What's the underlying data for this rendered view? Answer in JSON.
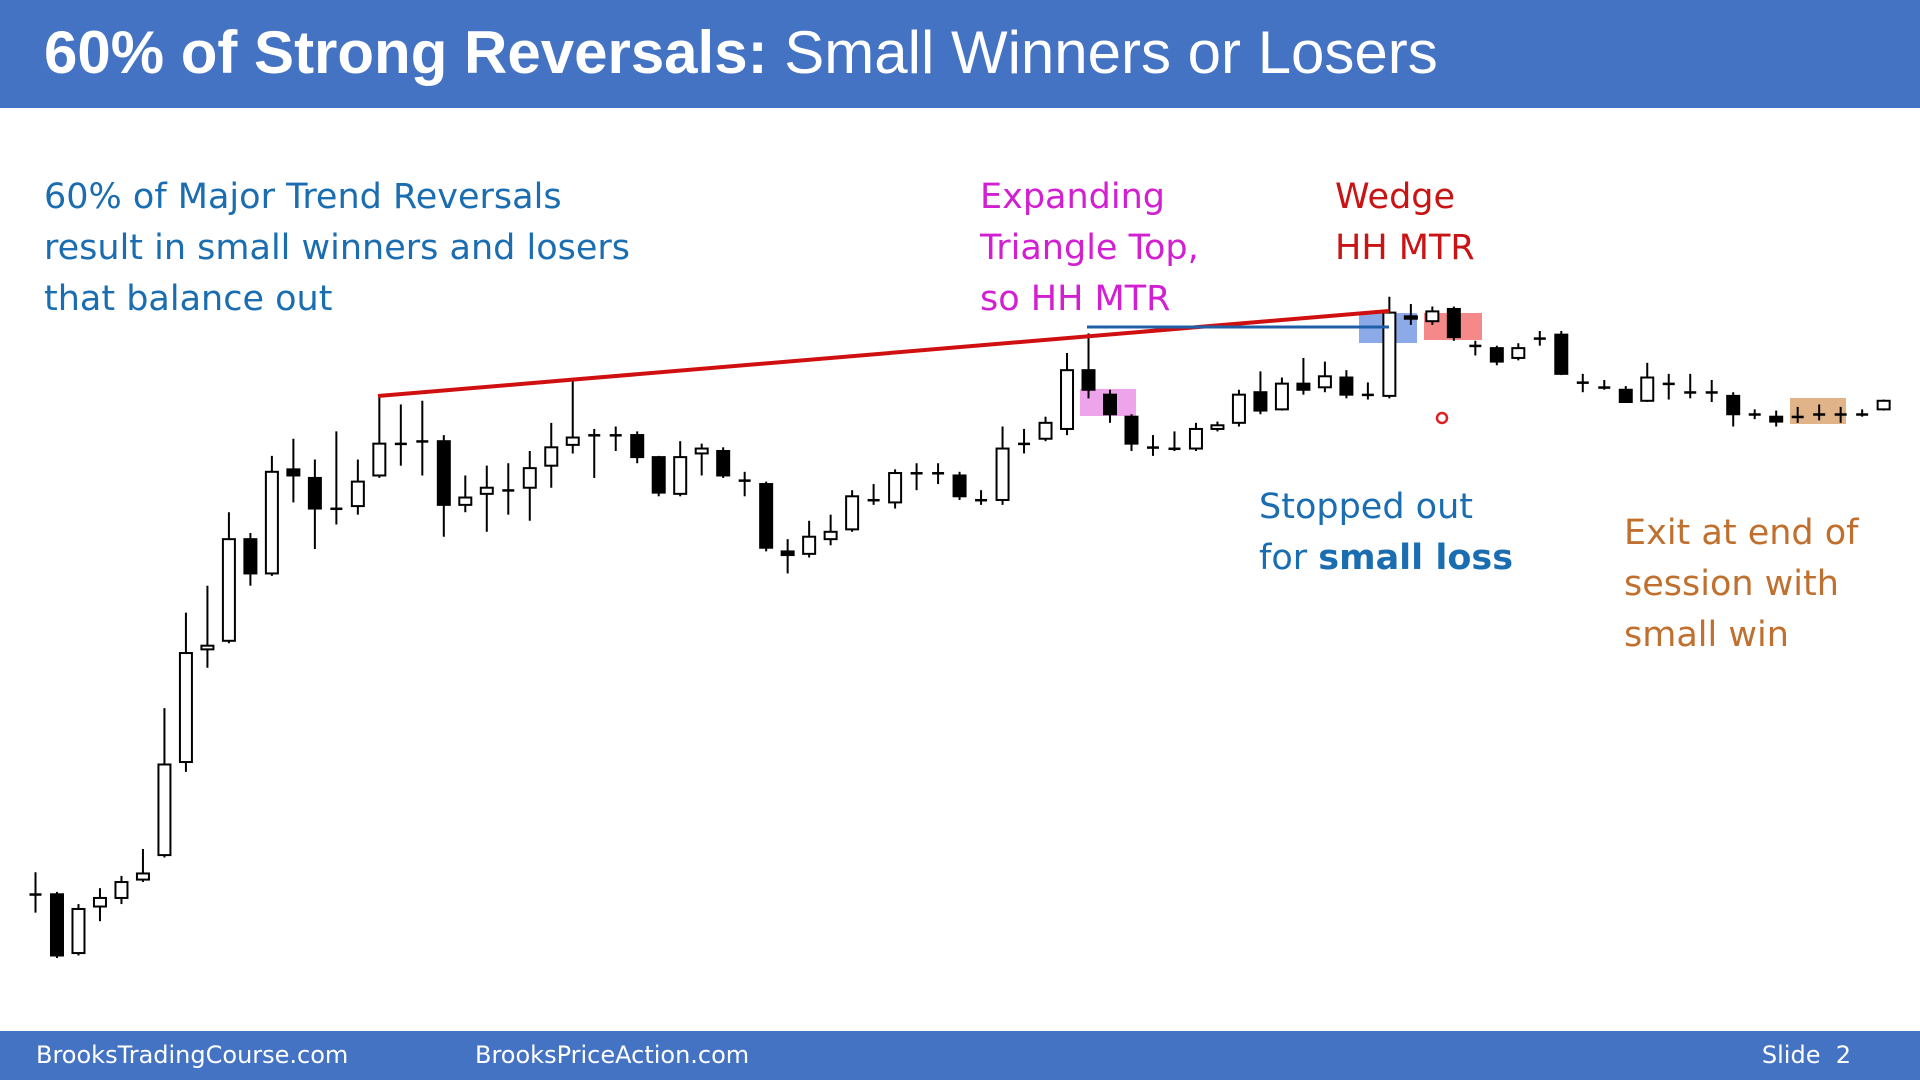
{
  "header": {
    "title_bold": "60% of Strong Reversals:",
    "title_rest": "Small Winners or Losers"
  },
  "notes": {
    "intro": [
      "60% of Major Trend Reversals",
      "result in small winners and losers",
      "that balance out"
    ],
    "expanding": [
      "Expanding",
      "Triangle Top,",
      "so HH MTR"
    ],
    "wedge": [
      "Wedge",
      "HH MTR"
    ],
    "stopped": {
      "line1": "Stopped out",
      "line2_plain": "for",
      "line2_bold": "small loss"
    },
    "exit": [
      "Exit at end of",
      "session with",
      "small win"
    ]
  },
  "footer": {
    "left": "BrooksTradingCourse.com",
    "middle": "BrooksPriceAction.com",
    "right": "Slide  2"
  },
  "chart_data": {
    "type": "candlestick",
    "up_color": "#ffffff",
    "down_color": "#000000",
    "ylim": [
      0,
      570
    ],
    "open": [
      70,
      70,
      22,
      60,
      67,
      82,
      102,
      178,
      270,
      277,
      360,
      332,
      417,
      410,
      385,
      387,
      412,
      438,
      440,
      440,
      388,
      397,
      400,
      402,
      420,
      437,
      445,
      445,
      445,
      427,
      397,
      430,
      432,
      408,
      405,
      350,
      348,
      360,
      368,
      392,
      390,
      414,
      414,
      412,
      392,
      392,
      438,
      442,
      450,
      498,
      478,
      460,
      435,
      434,
      434,
      450,
      455,
      480,
      466,
      487,
      484,
      492,
      478,
      477,
      542,
      538,
      548,
      518,
      516,
      508,
      524,
      527,
      488,
      484,
      482,
      473,
      487,
      480,
      480,
      477,
      462,
      460,
      460,
      462,
      462,
      462,
      466
    ],
    "high": [
      88,
      72,
      62,
      75,
      85,
      107,
      222,
      300,
      322,
      382,
      365,
      428,
      442,
      425,
      448,
      425,
      478,
      470,
      473,
      445,
      412,
      420,
      422,
      432,
      455,
      490,
      450,
      452,
      448,
      428,
      440,
      438,
      435,
      415,
      407,
      360,
      375,
      380,
      400,
      405,
      417,
      422,
      422,
      415,
      400,
      452,
      450,
      460,
      512,
      528,
      482,
      462,
      445,
      448,
      455,
      456,
      482,
      497,
      492,
      508,
      505,
      498,
      488,
      558,
      552,
      550,
      550,
      522,
      518,
      520,
      530,
      530,
      495,
      490,
      485,
      504,
      495,
      495,
      490,
      480,
      466,
      465,
      468,
      470,
      468,
      466,
      474
    ],
    "low": [
      55,
      18,
      20,
      48,
      62,
      80,
      100,
      170,
      255,
      275,
      322,
      330,
      390,
      352,
      372,
      380,
      410,
      420,
      412,
      362,
      382,
      366,
      380,
      375,
      402,
      430,
      410,
      432,
      422,
      395,
      395,
      412,
      410,
      395,
      350,
      332,
      345,
      355,
      366,
      388,
      385,
      400,
      405,
      392,
      388,
      388,
      430,
      440,
      445,
      475,
      455,
      432,
      428,
      432,
      432,
      448,
      452,
      462,
      465,
      478,
      480,
      475,
      474,
      475,
      535,
      535,
      522,
      510,
      502,
      506,
      518,
      494,
      480,
      482,
      472,
      472,
      474,
      475,
      472,
      452,
      458,
      452,
      455,
      457,
      455,
      460,
      465
    ],
    "close": [
      70,
      20,
      58,
      67,
      80,
      87,
      176,
      267,
      273,
      360,
      332,
      415,
      412,
      385,
      385,
      407,
      438,
      438,
      440,
      388,
      394,
      402,
      400,
      418,
      435,
      443,
      445,
      445,
      427,
      398,
      427,
      434,
      412,
      408,
      353,
      347,
      362,
      366,
      395,
      392,
      414,
      414,
      414,
      395,
      392,
      434,
      438,
      455,
      498,
      482,
      462,
      438,
      435,
      434,
      450,
      453,
      478,
      465,
      487,
      482,
      493,
      478,
      478,
      545,
      540,
      546,
      525,
      518,
      505,
      516,
      524,
      495,
      488,
      484,
      472,
      492,
      487,
      480,
      480,
      462,
      462,
      456,
      460,
      462,
      462,
      462,
      473
    ]
  }
}
